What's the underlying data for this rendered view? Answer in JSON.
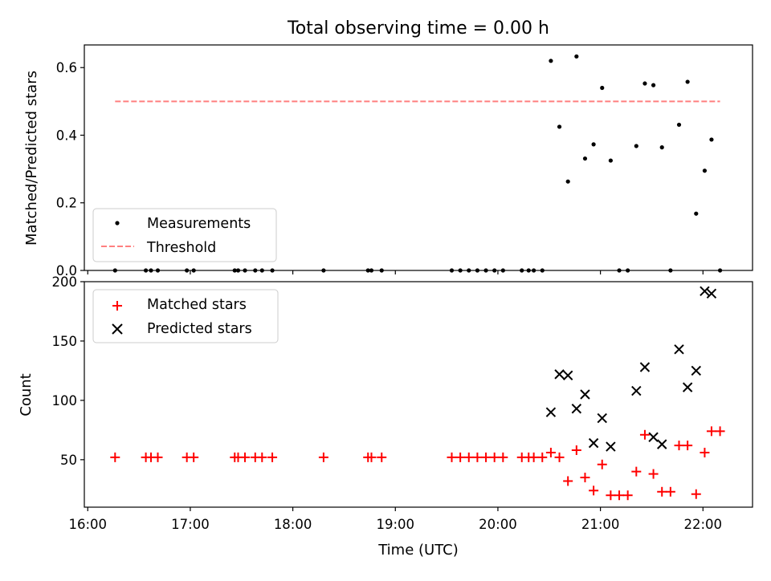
{
  "chart_data": [
    {
      "type": "scatter",
      "title": "Total observing time = 0.00 h",
      "xlabel": "",
      "ylabel": "Matched/Predicted stars",
      "ylim": [
        0,
        0.667
      ],
      "yticks": [
        0.0,
        0.2,
        0.4,
        0.6
      ],
      "ytick_labels": [
        "0.0",
        "0.2",
        "0.4",
        "0.6"
      ],
      "legend_position": "lower-left",
      "series": [
        {
          "name": "Measurements",
          "marker": "dot",
          "color": "#000000",
          "x": [
            "16:16",
            "16:34",
            "16:37",
            "16:41",
            "16:58",
            "17:02",
            "17:26",
            "17:28",
            "17:32",
            "17:38",
            "17:42",
            "17:48",
            "18:18",
            "18:44",
            "18:46",
            "18:52",
            "19:33",
            "19:38",
            "19:43",
            "19:48",
            "19:53",
            "19:58",
            "20:03",
            "20:14",
            "20:18",
            "20:21",
            "20:26",
            "20:31",
            "20:36",
            "20:41",
            "20:46",
            "20:51",
            "20:56",
            "21:01",
            "21:06",
            "21:11",
            "21:16",
            "21:21",
            "21:26",
            "21:31",
            "21:36",
            "21:41",
            "21:46",
            "21:51",
            "21:56",
            "22:01",
            "22:05",
            "22:10"
          ],
          "y": [
            0,
            0,
            0,
            0,
            0,
            0,
            0,
            0,
            0,
            0,
            0,
            0,
            0,
            0,
            0,
            0,
            0,
            0,
            0,
            0,
            0,
            0,
            0,
            0,
            0,
            0,
            0,
            0.62,
            0.425,
            0.263,
            0.633,
            0.331,
            0.373,
            0.54,
            0.325,
            0,
            0,
            0.368,
            0.553,
            0.548,
            0.364,
            0,
            0.431,
            0.558,
            0.168,
            0.295,
            0.387,
            0
          ]
        },
        {
          "name": "Threshold",
          "style": "dashed",
          "color": "#ff7f7f",
          "x": [
            "16:16",
            "22:10"
          ],
          "y": [
            0.5,
            0.5
          ]
        }
      ]
    },
    {
      "type": "scatter",
      "title": "",
      "xlabel": "Time (UTC)",
      "ylabel": "Count",
      "ylim": [
        10,
        200
      ],
      "yticks": [
        50,
        100,
        150,
        200
      ],
      "ytick_labels": [
        "50",
        "100",
        "150",
        "200"
      ],
      "xlim": [
        "15:58",
        "22:29"
      ],
      "xticks": [
        "16:00",
        "17:00",
        "18:00",
        "19:00",
        "20:00",
        "21:00",
        "22:00"
      ],
      "legend_position": "upper-left",
      "series": [
        {
          "name": "Matched stars",
          "marker": "plus",
          "color": "#ff0000",
          "x": [
            "16:16",
            "16:34",
            "16:37",
            "16:41",
            "16:58",
            "17:02",
            "17:26",
            "17:28",
            "17:32",
            "17:38",
            "17:42",
            "17:48",
            "18:18",
            "18:44",
            "18:46",
            "18:52",
            "19:33",
            "19:38",
            "19:43",
            "19:48",
            "19:53",
            "19:58",
            "20:03",
            "20:14",
            "20:18",
            "20:21",
            "20:26",
            "20:31",
            "20:36",
            "20:41",
            "20:46",
            "20:51",
            "20:56",
            "21:01",
            "21:06",
            "21:11",
            "21:16",
            "21:21",
            "21:26",
            "21:31",
            "21:36",
            "21:41",
            "21:46",
            "21:51",
            "21:56",
            "22:01",
            "22:05",
            "22:10"
          ],
          "y": [
            52,
            52,
            52,
            52,
            52,
            52,
            52,
            52,
            52,
            52,
            52,
            52,
            52,
            52,
            52,
            52,
            52,
            52,
            52,
            52,
            52,
            52,
            52,
            52,
            52,
            52,
            52,
            56,
            52,
            32,
            58,
            35,
            24,
            46,
            20,
            20,
            20,
            40,
            71,
            38,
            23,
            23,
            62,
            62,
            21,
            56,
            74,
            74
          ]
        },
        {
          "name": "Predicted stars",
          "marker": "x",
          "color": "#000000",
          "x": [
            "20:31",
            "20:36",
            "20:41",
            "20:46",
            "20:51",
            "20:56",
            "21:01",
            "21:06",
            "21:21",
            "21:26",
            "21:31",
            "21:36",
            "21:46",
            "21:51",
            "21:56",
            "22:01",
            "22:05"
          ],
          "y": [
            90,
            122,
            121,
            93,
            105,
            64,
            85,
            61,
            108,
            128,
            69,
            63,
            143,
            111,
            125,
            192,
            190
          ]
        }
      ]
    }
  ]
}
